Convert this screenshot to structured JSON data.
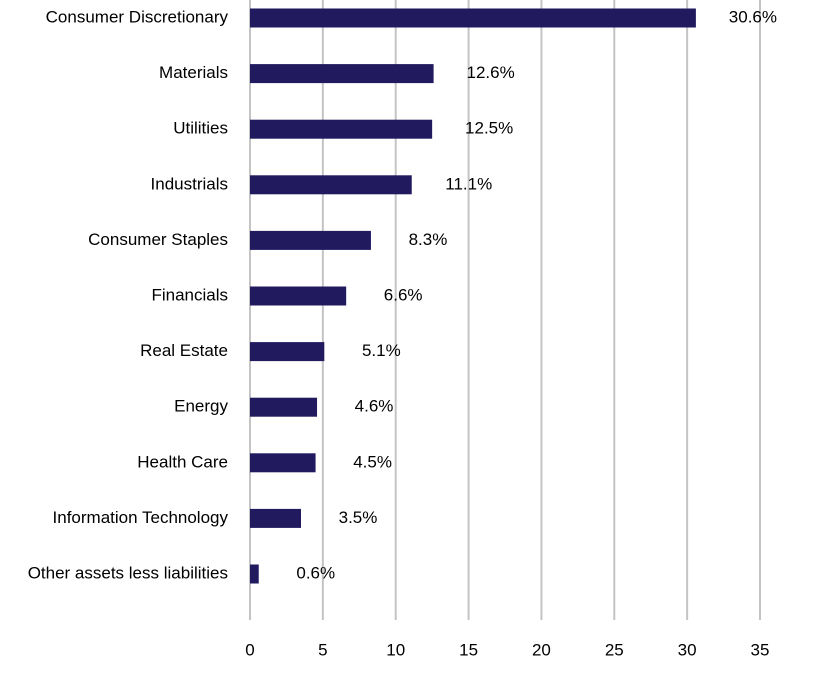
{
  "chart_data": {
    "type": "bar",
    "orientation": "horizontal",
    "categories": [
      "Consumer Discretionary",
      "Materials",
      "Utilities",
      "Industrials",
      "Consumer Staples",
      "Financials",
      "Real Estate",
      "Energy",
      "Health Care",
      "Information Technology",
      "Other assets less liabilities"
    ],
    "values": [
      30.6,
      12.6,
      12.5,
      11.1,
      8.3,
      6.6,
      5.1,
      4.6,
      4.5,
      3.5,
      0.6
    ],
    "value_labels": [
      "30.6%",
      "12.6%",
      "12.5%",
      "11.1%",
      "8.3%",
      "6.6%",
      "5.1%",
      "4.6%",
      "4.5%",
      "3.5%",
      "0.6%"
    ],
    "color": "#211a5f",
    "xlim": [
      0,
      35
    ],
    "xticks": [
      0,
      5,
      10,
      15,
      20,
      25,
      30,
      35
    ],
    "grid": true
  }
}
